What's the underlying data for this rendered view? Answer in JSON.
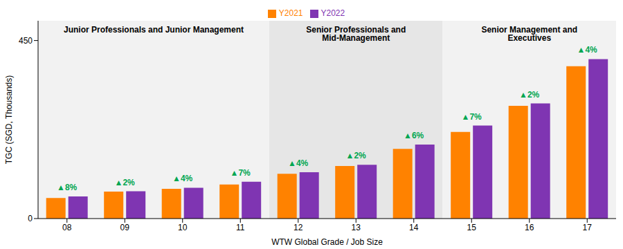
{
  "chart_data": {
    "type": "bar",
    "x_label": "WTW Global Grade / Job Size",
    "y_label": "TGC (SGD, Thousands)",
    "categories": [
      "08",
      "09",
      "10",
      "11",
      "12",
      "13",
      "14",
      "15",
      "16",
      "17"
    ],
    "series": [
      {
        "name": "Y2021",
        "color": "#ff8200",
        "values": [
          52,
          68,
          75,
          86,
          113,
          133,
          176,
          219,
          285,
          385
        ]
      },
      {
        "name": "Y2022",
        "color": "#7f35b2",
        "values": [
          56,
          69,
          78,
          93,
          117,
          136,
          187,
          235,
          291,
          403
        ]
      }
    ],
    "change_labels": [
      "▲8%",
      "▲2%",
      "▲4%",
      "▲7%",
      "▲4%",
      "▲2%",
      "▲6%",
      "▲7%",
      "▲2%",
      "▲4%"
    ],
    "groups": [
      {
        "label": "Junior Professionals and Junior Management",
        "categories": [
          "08",
          "09",
          "10",
          "11"
        ]
      },
      {
        "label": "Senior Professionals and Mid-Management",
        "categories": [
          "12",
          "13",
          "14"
        ]
      },
      {
        "label": "Senior Management and Executives",
        "categories": [
          "15",
          "16",
          "17"
        ]
      }
    ],
    "ylim": [
      0,
      500
    ],
    "yticks": [
      0,
      450
    ],
    "grid": false,
    "legend": "top"
  }
}
